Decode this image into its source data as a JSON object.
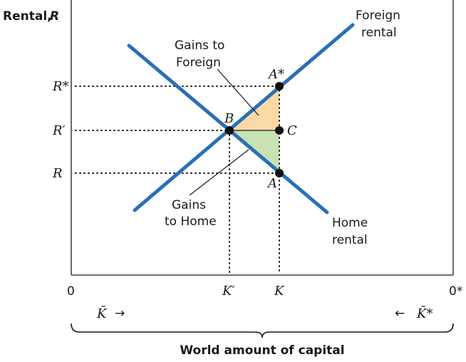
{
  "axes": {
    "y_title": "Rental,",
    "y_title_var": "R",
    "origin_left": "0",
    "origin_right": "0*"
  },
  "y_ticks": {
    "r_star": "R*",
    "r_prime": "R′",
    "r": "R"
  },
  "x_ticks": {
    "k_prime": "K′",
    "k": "K"
  },
  "curves": {
    "foreign": [
      "Foreign",
      "rental"
    ],
    "home": [
      "Home",
      "rental"
    ]
  },
  "points": {
    "a_star": "A*",
    "b": "B",
    "c": "C",
    "a": "A"
  },
  "areas": {
    "gains_foreign": [
      "Gains to",
      "Foreign"
    ],
    "gains_home": [
      "Gains",
      "to Home"
    ]
  },
  "bottom": {
    "kbar_left": "K̄",
    "kbar_right": "K̄*",
    "arrow_right": "→",
    "arrow_left": "←",
    "world_capital": "World amount of capital"
  },
  "colors": {
    "curve": "#2a6fb8",
    "foreign_gain_fill": "#f9d9a6",
    "home_gain_fill": "#c9e2b3",
    "axis": "#1a1a1a"
  }
}
